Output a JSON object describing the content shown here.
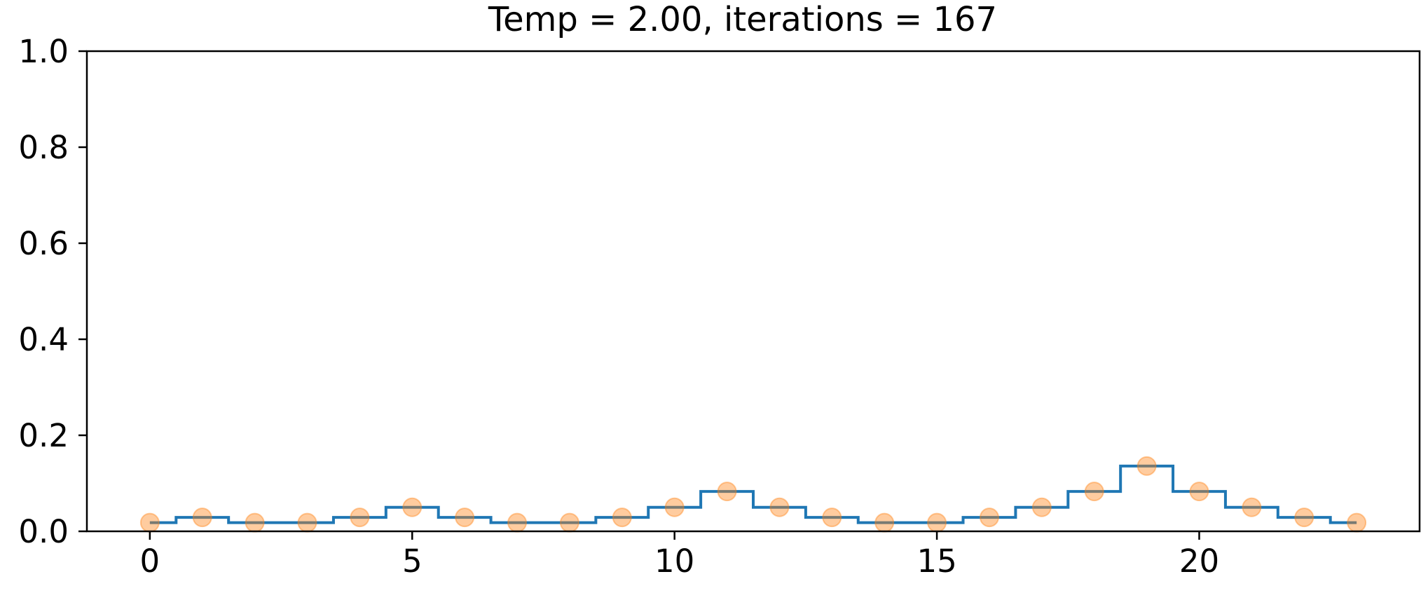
{
  "chart_data": {
    "type": "line",
    "title": "Temp = 2.00, iterations = 167",
    "xlabel": "",
    "ylabel": "",
    "xlim": [
      -1.2,
      24.2
    ],
    "ylim": [
      0.0,
      1.0
    ],
    "xticks": [
      0,
      5,
      10,
      15,
      20
    ],
    "xtick_labels": [
      "0",
      "5",
      "10",
      "15",
      "20"
    ],
    "yticks": [
      0.0,
      0.2,
      0.4,
      0.6,
      0.8,
      1.0
    ],
    "ytick_labels": [
      "0.0",
      "0.2",
      "0.4",
      "0.6",
      "0.8",
      "1.0"
    ],
    "grid": false,
    "x": [
      0,
      1,
      2,
      3,
      4,
      5,
      6,
      7,
      8,
      9,
      10,
      11,
      12,
      13,
      14,
      15,
      16,
      17,
      18,
      19,
      20,
      21,
      22,
      23
    ],
    "series": [
      {
        "style": "step",
        "color": "#1f77b4",
        "values": [
          0.018,
          0.029,
          0.018,
          0.018,
          0.029,
          0.05,
          0.029,
          0.018,
          0.018,
          0.029,
          0.05,
          0.083,
          0.05,
          0.029,
          0.018,
          0.018,
          0.029,
          0.05,
          0.083,
          0.136,
          0.083,
          0.05,
          0.029,
          0.018
        ]
      },
      {
        "style": "markers",
        "color": "#ff7f0e",
        "values": [
          0.018,
          0.029,
          0.018,
          0.018,
          0.029,
          0.05,
          0.029,
          0.018,
          0.018,
          0.029,
          0.05,
          0.083,
          0.05,
          0.029,
          0.018,
          0.018,
          0.029,
          0.05,
          0.083,
          0.136,
          0.083,
          0.05,
          0.029,
          0.018
        ]
      }
    ]
  }
}
